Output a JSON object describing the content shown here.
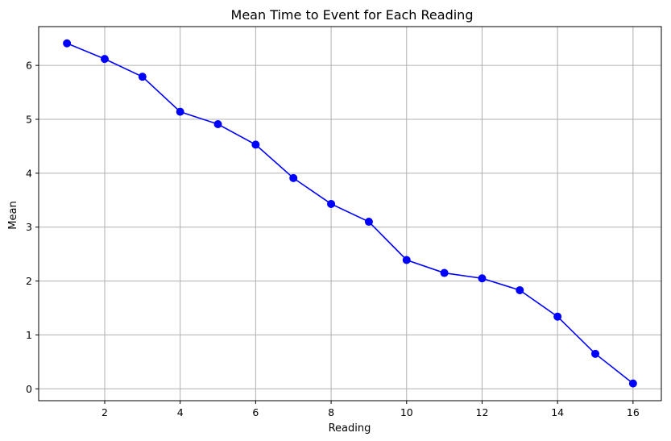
{
  "chart_data": {
    "type": "line",
    "title": "Mean Time to Event for Each Reading",
    "xlabel": "Reading",
    "ylabel": "Mean",
    "x": [
      1,
      2,
      3,
      4,
      5,
      6,
      7,
      8,
      9,
      10,
      11,
      12,
      13,
      14,
      15,
      16
    ],
    "series": [
      {
        "values": [
          6.41,
          6.12,
          5.79,
          5.14,
          4.91,
          4.53,
          3.91,
          3.43,
          3.1,
          2.39,
          2.15,
          2.05,
          1.83,
          1.34,
          0.65,
          0.1
        ]
      }
    ],
    "xlim": [
      0.25,
      16.75
    ],
    "ylim": [
      -0.22,
      6.72
    ],
    "xticks": [
      2,
      4,
      6,
      8,
      10,
      12,
      14,
      16
    ],
    "yticks": [
      0,
      1,
      2,
      3,
      4,
      5,
      6
    ],
    "grid": true,
    "line_color": "#0000ff",
    "marker": "circle"
  }
}
